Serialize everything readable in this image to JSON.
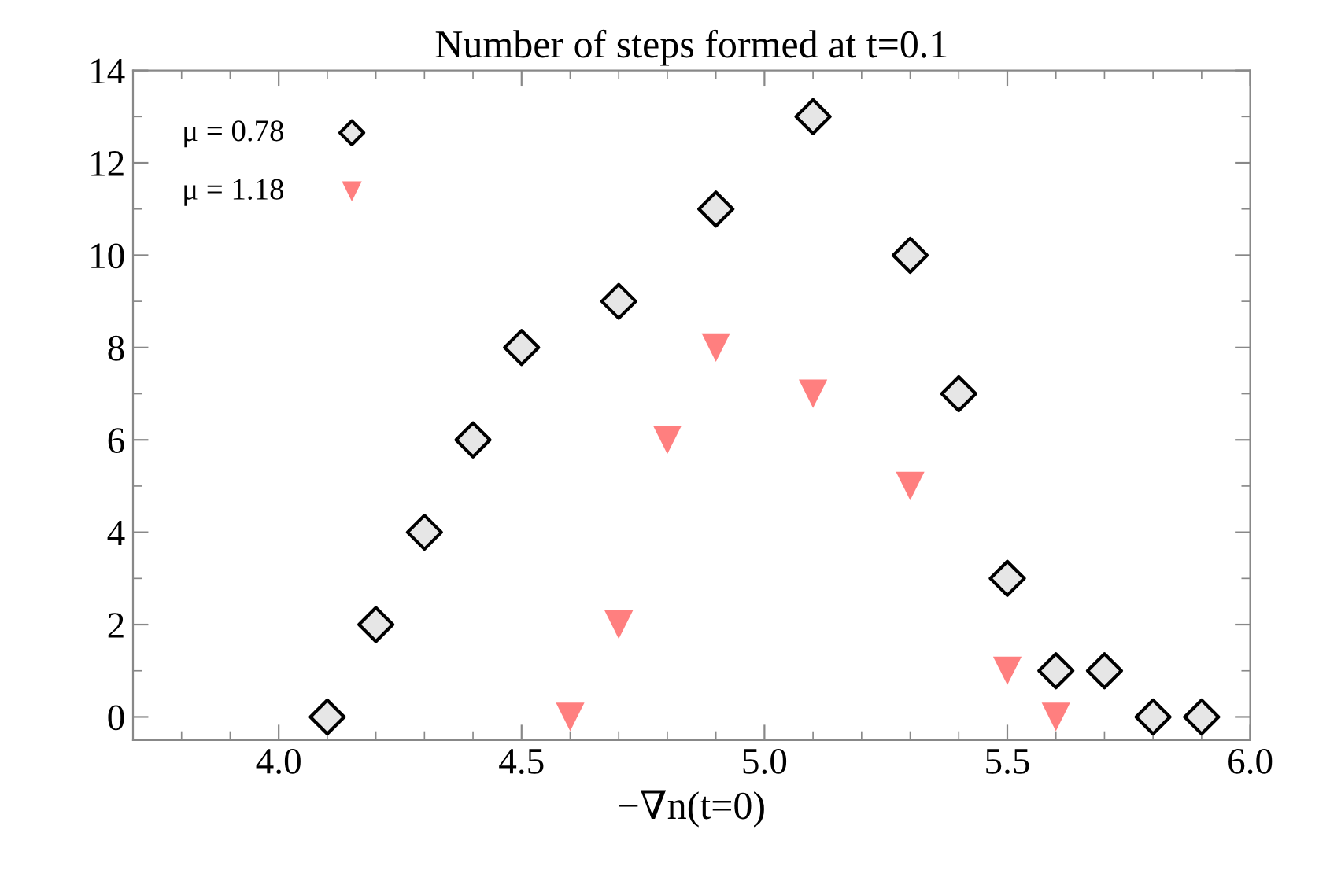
{
  "chart_data": {
    "type": "scatter",
    "title": "Number of steps formed at t=0.1",
    "xlabel": "−∇n(t=0)",
    "series": [
      {
        "name": "μ = 0.78",
        "color": "#e6e6e6",
        "marker": "diamond",
        "x": [
          4.1,
          4.2,
          4.3,
          4.4,
          4.5,
          4.7,
          4.9,
          5.1,
          5.3,
          5.4,
          5.5,
          5.6,
          5.7,
          5.8,
          5.9
        ],
        "values": [
          0,
          2,
          4,
          6,
          8,
          9,
          11,
          13,
          10,
          7,
          3,
          1,
          1,
          0,
          0
        ]
      },
      {
        "name": "μ = 1.18",
        "color": "#ff7f7f",
        "marker": "triangle",
        "x": [
          4.6,
          4.7,
          4.8,
          4.9,
          5.1,
          5.3,
          5.5,
          5.6
        ],
        "values": [
          0,
          2,
          6,
          8,
          7,
          5,
          1,
          0
        ]
      }
    ],
    "xlim": [
      3.7,
      6.0
    ],
    "xticks": [
      {
        "value": 4.0,
        "label": "4.0"
      },
      {
        "value": 4.5,
        "label": "4.5"
      },
      {
        "value": 5.0,
        "label": "5.0"
      },
      {
        "value": 5.5,
        "label": "5.5"
      },
      {
        "value": 6.0,
        "label": "6.0"
      }
    ],
    "ylim": [
      -0.5,
      14
    ],
    "yticks": [
      0,
      2,
      4,
      6,
      8,
      10,
      12,
      14
    ],
    "grid": false,
    "legend": "top left"
  }
}
